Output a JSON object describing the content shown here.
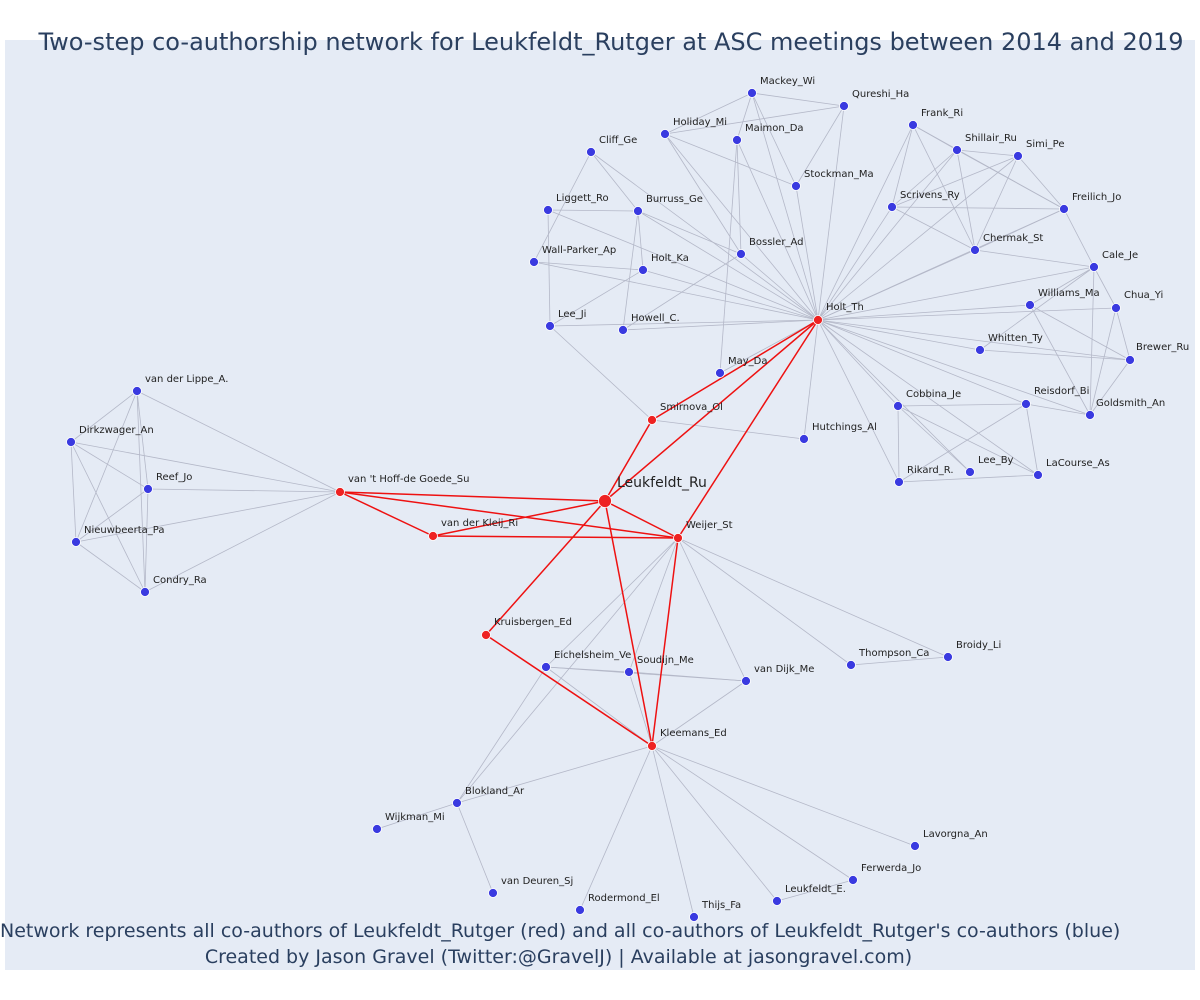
{
  "title": "Two-step co-authorship network for Leukfeldt_Rutger at ASC meetings between 2014 and 2019",
  "caption": {
    "line1": "Network represents all co-authors of Leukfeldt_Rutger (red) and all co-authors of Leukfeldt_Rutger's co-authors (blue)",
    "line2": "Created by Jason Gravel (Twitter:@GravelJ) | Available at jasongravel.com)"
  },
  "colors": {
    "background": "#e5ebf5",
    "edge": "#b4b8c8",
    "red_edge": "#ee1111",
    "red_node": "#ee2222",
    "blue_node": "#3a3ae0",
    "node_stroke": "#ffffff"
  },
  "nodes": [
    {
      "id": "Leukfeldt_Ru",
      "label": "Leukfeldt_Ru",
      "group": "ego"
    },
    {
      "id": "Holt_Th",
      "label": "Holt_Th",
      "group": "red"
    },
    {
      "id": "Smirnova_Ol",
      "label": "Smirnova_Ol",
      "group": "red"
    },
    {
      "id": "Weijer_St",
      "label": "Weijer_St",
      "group": "red"
    },
    {
      "id": "vdKleij_Ri",
      "label": "van der Kleij_Ri",
      "group": "red"
    },
    {
      "id": "vtHoff_Su",
      "label": "van 't Hoff-de Goede_Su",
      "group": "red"
    },
    {
      "id": "Kruisbergen_Ed",
      "label": "Kruisbergen_Ed",
      "group": "red"
    },
    {
      "id": "Kleemans_Ed",
      "label": "Kleemans_Ed",
      "group": "red"
    },
    {
      "id": "Mackey_Wi",
      "label": "Mackey_Wi",
      "group": "blue"
    },
    {
      "id": "Qureshi_Ha",
      "label": "Qureshi_Ha",
      "group": "blue"
    },
    {
      "id": "Holiday_Mi",
      "label": "Holiday_Mi",
      "group": "blue"
    },
    {
      "id": "Maimon_Da",
      "label": "Maimon_Da",
      "group": "blue"
    },
    {
      "id": "Cliff_Ge",
      "label": "Cliff_Ge",
      "group": "blue"
    },
    {
      "id": "Stockman_Ma",
      "label": "Stockman_Ma",
      "group": "blue"
    },
    {
      "id": "Frank_Ri",
      "label": "Frank_Ri",
      "group": "blue"
    },
    {
      "id": "Shillair_Ru",
      "label": "Shillair_Ru",
      "group": "blue"
    },
    {
      "id": "Simi_Pe",
      "label": "Simi_Pe",
      "group": "blue"
    },
    {
      "id": "Liggett_Ro",
      "label": "Liggett_Ro",
      "group": "blue"
    },
    {
      "id": "Burruss_Ge",
      "label": "Burruss_Ge",
      "group": "blue"
    },
    {
      "id": "Scrivens_Ry",
      "label": "Scrivens_Ry",
      "group": "blue"
    },
    {
      "id": "Freilich_Jo",
      "label": "Freilich_Jo",
      "group": "blue"
    },
    {
      "id": "WallParker_Ap",
      "label": "Wall-Parker_Ap",
      "group": "blue"
    },
    {
      "id": "Bossler_Ad",
      "label": "Bossler_Ad",
      "group": "blue"
    },
    {
      "id": "Chermak_St",
      "label": "Chermak_St",
      "group": "blue"
    },
    {
      "id": "Holt_Ka",
      "label": "Holt_Ka",
      "group": "blue"
    },
    {
      "id": "Cale_Je",
      "label": "Cale_Je",
      "group": "blue"
    },
    {
      "id": "Williams_Ma",
      "label": "Williams_Ma",
      "group": "blue"
    },
    {
      "id": "Chua_Yi",
      "label": "Chua_Yi",
      "group": "blue"
    },
    {
      "id": "Lee_Ji",
      "label": "Lee_Ji",
      "group": "blue"
    },
    {
      "id": "Howell_C",
      "label": "Howell_C.",
      "group": "blue"
    },
    {
      "id": "Whitten_Ty",
      "label": "Whitten_Ty",
      "group": "blue"
    },
    {
      "id": "Brewer_Ru",
      "label": "Brewer_Ru",
      "group": "blue"
    },
    {
      "id": "May_Da",
      "label": "May_Da",
      "group": "blue"
    },
    {
      "id": "vdLippe_A",
      "label": "van der Lippe_A.",
      "group": "blue"
    },
    {
      "id": "Reisdorf_Bi",
      "label": "Reisdorf_Bi",
      "group": "blue"
    },
    {
      "id": "Goldsmith_An",
      "label": "Goldsmith_An",
      "group": "blue"
    },
    {
      "id": "Cobbina_Je",
      "label": "Cobbina_Je",
      "group": "blue"
    },
    {
      "id": "Dirkzwager_An",
      "label": "Dirkzwager_An",
      "group": "blue"
    },
    {
      "id": "Hutchings_Al",
      "label": "Hutchings_Al",
      "group": "blue"
    },
    {
      "id": "Reef_Jo",
      "label": "Reef_Jo",
      "group": "blue"
    },
    {
      "id": "Lee_By",
      "label": "Lee_By",
      "group": "blue"
    },
    {
      "id": "LaCourse_As",
      "label": "LaCourse_As",
      "group": "blue"
    },
    {
      "id": "Rikard_R",
      "label": "Rikard_R.",
      "group": "blue"
    },
    {
      "id": "Nieuwbeerta_Pa",
      "label": "Nieuwbeerta_Pa",
      "group": "blue"
    },
    {
      "id": "Condry_Ra",
      "label": "Condry_Ra",
      "group": "blue"
    },
    {
      "id": "Broidy_Li",
      "label": "Broidy_Li",
      "group": "blue"
    },
    {
      "id": "Thompson_Ca",
      "label": "Thompson_Ca",
      "group": "blue"
    },
    {
      "id": "Eichelsheim_Ve",
      "label": "Eichelsheim_Ve",
      "group": "blue"
    },
    {
      "id": "Soudijn_Me",
      "label": "Soudijn_Me",
      "group": "blue"
    },
    {
      "id": "vDijk_Me",
      "label": "van Dijk_Me",
      "group": "blue"
    },
    {
      "id": "Blokland_Ar",
      "label": "Blokland_Ar",
      "group": "blue"
    },
    {
      "id": "Wijkman_Mi",
      "label": "Wijkman_Mi",
      "group": "blue"
    },
    {
      "id": "Lavorgna_An",
      "label": "Lavorgna_An",
      "group": "blue"
    },
    {
      "id": "Ferwerda_Jo",
      "label": "Ferwerda_Jo",
      "group": "blue"
    },
    {
      "id": "Leukfeldt_E",
      "label": "Leukfeldt_E.",
      "group": "blue"
    },
    {
      "id": "vDeuren_Sj",
      "label": "van Deuren_Sj",
      "group": "blue"
    },
    {
      "id": "Rodermond_El",
      "label": "Rodermond_El",
      "group": "blue"
    },
    {
      "id": "Thijs_Fa",
      "label": "Thijs_Fa",
      "group": "blue"
    }
  ],
  "edges": [
    [
      "Leukfeldt_Ru",
      "Holt_Th"
    ],
    [
      "Leukfeldt_Ru",
      "Smirnova_Ol"
    ],
    [
      "Leukfeldt_Ru",
      "Weijer_St"
    ],
    [
      "Leukfeldt_Ru",
      "vdKleij_Ri"
    ],
    [
      "Leukfeldt_Ru",
      "vtHoff_Su"
    ],
    [
      "Leukfeldt_Ru",
      "Kruisbergen_Ed"
    ],
    [
      "Leukfeldt_Ru",
      "Kleemans_Ed"
    ],
    [
      "Smirnova_Ol",
      "Holt_Th"
    ],
    [
      "Weijer_St",
      "Holt_Th"
    ],
    [
      "vtHoff_Su",
      "vdKleij_Ri"
    ],
    [
      "vtHoff_Su",
      "Weijer_St"
    ],
    [
      "vdKleij_Ri",
      "Weijer_St"
    ],
    [
      "Weijer_St",
      "Kleemans_Ed"
    ],
    [
      "Kruisbergen_Ed",
      "Kleemans_Ed"
    ],
    [
      "Holt_Th",
      "Mackey_Wi"
    ],
    [
      "Holt_Th",
      "Qureshi_Ha"
    ],
    [
      "Holt_Th",
      "Holiday_Mi"
    ],
    [
      "Holt_Th",
      "Maimon_Da"
    ],
    [
      "Holt_Th",
      "Cliff_Ge"
    ],
    [
      "Holt_Th",
      "Stockman_Ma"
    ],
    [
      "Holt_Th",
      "Frank_Ri"
    ],
    [
      "Holt_Th",
      "Shillair_Ru"
    ],
    [
      "Holt_Th",
      "Simi_Pe"
    ],
    [
      "Holt_Th",
      "Liggett_Ro"
    ],
    [
      "Holt_Th",
      "Burruss_Ge"
    ],
    [
      "Holt_Th",
      "Scrivens_Ry"
    ],
    [
      "Holt_Th",
      "Freilich_Jo"
    ],
    [
      "Holt_Th",
      "WallParker_Ap"
    ],
    [
      "Holt_Th",
      "Bossler_Ad"
    ],
    [
      "Holt_Th",
      "Chermak_St"
    ],
    [
      "Holt_Th",
      "Holt_Ka"
    ],
    [
      "Holt_Th",
      "Cale_Je"
    ],
    [
      "Holt_Th",
      "Williams_Ma"
    ],
    [
      "Holt_Th",
      "Chua_Yi"
    ],
    [
      "Holt_Th",
      "Lee_Ji"
    ],
    [
      "Holt_Th",
      "Howell_C"
    ],
    [
      "Holt_Th",
      "Whitten_Ty"
    ],
    [
      "Holt_Th",
      "Brewer_Ru"
    ],
    [
      "Holt_Th",
      "May_Da"
    ],
    [
      "Holt_Th",
      "Reisdorf_Bi"
    ],
    [
      "Holt_Th",
      "Goldsmith_An"
    ],
    [
      "Holt_Th",
      "Cobbina_Je"
    ],
    [
      "Holt_Th",
      "Hutchings_Al"
    ],
    [
      "Holt_Th",
      "Lee_By"
    ],
    [
      "Holt_Th",
      "LaCourse_As"
    ],
    [
      "Holt_Th",
      "Rikard_R"
    ],
    [
      "Mackey_Wi",
      "Qureshi_Ha"
    ],
    [
      "Mackey_Wi",
      "Holiday_Mi"
    ],
    [
      "Mackey_Wi",
      "Stockman_Ma"
    ],
    [
      "Mackey_Wi",
      "Maimon_Da"
    ],
    [
      "Qureshi_Ha",
      "Holiday_Mi"
    ],
    [
      "Qureshi_Ha",
      "Stockman_Ma"
    ],
    [
      "Holiday_Mi",
      "Stockman_Ma"
    ],
    [
      "Holiday_Mi",
      "Bossler_Ad"
    ],
    [
      "Maimon_Da",
      "Bossler_Ad"
    ],
    [
      "Maimon_Da",
      "May_Da"
    ],
    [
      "Cliff_Ge",
      "Burruss_Ge"
    ],
    [
      "Cliff_Ge",
      "WallParker_Ap"
    ],
    [
      "Liggett_Ro",
      "Lee_Ji"
    ],
    [
      "Liggett_Ro",
      "Burruss_Ge"
    ],
    [
      "Burruss_Ge",
      "Holt_Ka"
    ],
    [
      "Burruss_Ge",
      "Howell_C"
    ],
    [
      "Burruss_Ge",
      "Bossler_Ad"
    ],
    [
      "WallParker_Ap",
      "Holt_Ka"
    ],
    [
      "Holt_Ka",
      "Lee_Ji"
    ],
    [
      "Bossler_Ad",
      "Howell_C"
    ],
    [
      "Lee_Ji",
      "Smirnova_Ol"
    ],
    [
      "Smirnova_Ol",
      "Hutchings_Al"
    ],
    [
      "Frank_Ri",
      "Shillair_Ru"
    ],
    [
      "Frank_Ri",
      "Chermak_St"
    ],
    [
      "Frank_Ri",
      "Scrivens_Ry"
    ],
    [
      "Frank_Ri",
      "Freilich_Jo"
    ],
    [
      "Shillair_Ru",
      "Simi_Pe"
    ],
    [
      "Shillair_Ru",
      "Chermak_St"
    ],
    [
      "Shillair_Ru",
      "Freilich_Jo"
    ],
    [
      "Shillair_Ru",
      "Scrivens_Ry"
    ],
    [
      "Simi_Pe",
      "Freilich_Jo"
    ],
    [
      "Simi_Pe",
      "Chermak_St"
    ],
    [
      "Simi_Pe",
      "Scrivens_Ry"
    ],
    [
      "Scrivens_Ry",
      "Freilich_Jo"
    ],
    [
      "Scrivens_Ry",
      "Chermak_St"
    ],
    [
      "Chermak_St",
      "Freilich_Jo"
    ],
    [
      "Freilich_Jo",
      "Cale_Je"
    ],
    [
      "Cale_Je",
      "Williams_Ma"
    ],
    [
      "Cale_Je",
      "Chua_Yi"
    ],
    [
      "Cale_Je",
      "Goldsmith_An"
    ],
    [
      "Cale_Je",
      "Whitten_Ty"
    ],
    [
      "Cale_Je",
      "Chermak_St"
    ],
    [
      "Williams_Ma",
      "Brewer_Ru"
    ],
    [
      "Williams_Ma",
      "Goldsmith_An"
    ],
    [
      "Chua_Yi",
      "Brewer_Ru"
    ],
    [
      "Chua_Yi",
      "Goldsmith_An"
    ],
    [
      "Whitten_Ty",
      "Brewer_Ru"
    ],
    [
      "Brewer_Ru",
      "Goldsmith_An"
    ],
    [
      "Reisdorf_Bi",
      "Goldsmith_An"
    ],
    [
      "Reisdorf_Bi",
      "Cobbina_Je"
    ],
    [
      "Reisdorf_Bi",
      "Rikard_R"
    ],
    [
      "Reisdorf_Bi",
      "LaCourse_As"
    ],
    [
      "Cobbina_Je",
      "Lee_By"
    ],
    [
      "Cobbina_Je",
      "LaCourse_As"
    ],
    [
      "Cobbina_Je",
      "Rikard_R"
    ],
    [
      "Rikard_R",
      "LaCourse_As"
    ],
    [
      "vtHoff_Su",
      "vdLippe_A"
    ],
    [
      "vtHoff_Su",
      "Dirkzwager_An"
    ],
    [
      "vtHoff_Su",
      "Reef_Jo"
    ],
    [
      "vtHoff_Su",
      "Nieuwbeerta_Pa"
    ],
    [
      "vtHoff_Su",
      "Condry_Ra"
    ],
    [
      "vdLippe_A",
      "Dirkzwager_An"
    ],
    [
      "vdLippe_A",
      "Reef_Jo"
    ],
    [
      "vdLippe_A",
      "Nieuwbeerta_Pa"
    ],
    [
      "vdLippe_A",
      "Condry_Ra"
    ],
    [
      "Dirkzwager_An",
      "Reef_Jo"
    ],
    [
      "Dirkzwager_An",
      "Nieuwbeerta_Pa"
    ],
    [
      "Dirkzwager_An",
      "Condry_Ra"
    ],
    [
      "Reef_Jo",
      "Nieuwbeerta_Pa"
    ],
    [
      "Reef_Jo",
      "Condry_Ra"
    ],
    [
      "Nieuwbeerta_Pa",
      "Condry_Ra"
    ],
    [
      "Weijer_St",
      "Broidy_Li"
    ],
    [
      "Weijer_St",
      "Thompson_Ca"
    ],
    [
      "Weijer_St",
      "Eichelsheim_Ve"
    ],
    [
      "Weijer_St",
      "Soudijn_Me"
    ],
    [
      "Weijer_St",
      "vDijk_Me"
    ],
    [
      "Weijer_St",
      "Blokland_Ar"
    ],
    [
      "Thompson_Ca",
      "Broidy_Li"
    ],
    [
      "Eichelsheim_Ve",
      "Soudijn_Me"
    ],
    [
      "Eichelsheim_Ve",
      "vDijk_Me"
    ],
    [
      "Eichelsheim_Ve",
      "Blokland_Ar"
    ],
    [
      "Eichelsheim_Ve",
      "Kleemans_Ed"
    ],
    [
      "Soudijn_Me",
      "vDijk_Me"
    ],
    [
      "Soudijn_Me",
      "Kleemans_Ed"
    ],
    [
      "vDijk_Me",
      "Kleemans_Ed"
    ],
    [
      "Kleemans_Ed",
      "Blokland_Ar"
    ],
    [
      "Kleemans_Ed",
      "Lavorgna_An"
    ],
    [
      "Kleemans_Ed",
      "Ferwerda_Jo"
    ],
    [
      "Kleemans_Ed",
      "Leukfeldt_E"
    ],
    [
      "Kleemans_Ed",
      "Rodermond_El"
    ],
    [
      "Kleemans_Ed",
      "Thijs_Fa"
    ],
    [
      "Blokland_Ar",
      "Wijkman_Mi"
    ],
    [
      "Blokland_Ar",
      "vDeuren_Sj"
    ],
    [
      "Ferwerda_Jo",
      "Leukfeldt_E"
    ]
  ]
}
